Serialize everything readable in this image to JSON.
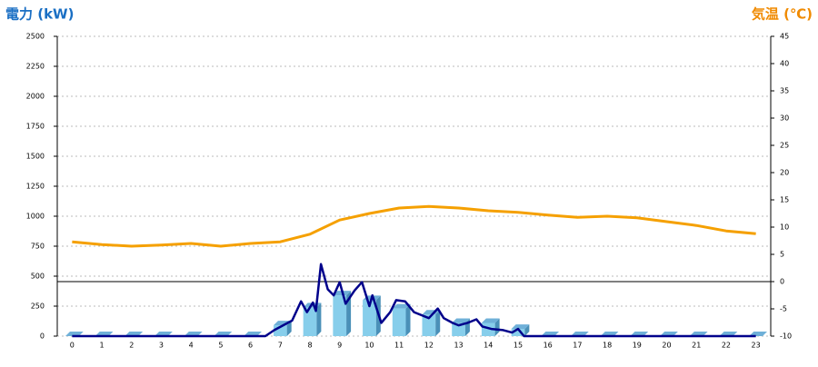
{
  "chart_data": {
    "type": "bar",
    "y_title": "電力 (kW)",
    "y2_title": "気温 (℃)",
    "categories": [
      "0",
      "1",
      "2",
      "3",
      "4",
      "5",
      "6",
      "7",
      "8",
      "9",
      "10",
      "11",
      "12",
      "13",
      "14",
      "15",
      "16",
      "17",
      "18",
      "19",
      "20",
      "21",
      "22",
      "23"
    ],
    "ylim": [
      0,
      2500
    ],
    "yticks": [
      0,
      250,
      500,
      750,
      1000,
      1250,
      1500,
      1750,
      2000,
      2250,
      2500
    ],
    "y2lim": [
      -10,
      45
    ],
    "y2ticks": [
      -10,
      -5,
      0,
      5,
      10,
      15,
      20,
      25,
      30,
      35,
      40,
      45
    ],
    "grid": true,
    "series": [
      {
        "type": "bar",
        "color": "#87ceeb",
        "values": [
          0,
          0,
          0,
          0,
          0,
          0,
          0,
          90,
          240,
          340,
          300,
          230,
          180,
          110,
          110,
          60,
          0,
          0,
          0,
          0,
          0,
          0,
          0,
          0
        ]
      },
      {
        "type": "line",
        "color": "#00008b",
        "x": [
          0,
          6.5,
          6.8,
          7.4,
          7.7,
          7.9,
          8.1,
          8.2,
          8.37,
          8.6,
          8.8,
          9.0,
          9.2,
          9.5,
          9.75,
          10.0,
          10.1,
          10.4,
          10.7,
          10.9,
          11.2,
          11.5,
          12.0,
          12.3,
          12.5,
          12.8,
          13.0,
          13.3,
          13.6,
          13.8,
          14.1,
          14.5,
          14.8,
          15.0,
          15.2,
          23
        ],
        "values": [
          0,
          0,
          50,
          130,
          290,
          200,
          280,
          210,
          600,
          390,
          340,
          450,
          270,
          380,
          450,
          250,
          340,
          110,
          200,
          300,
          290,
          200,
          150,
          230,
          150,
          110,
          90,
          110,
          140,
          80,
          60,
          50,
          30,
          60,
          0,
          0
        ]
      },
      {
        "type": "line",
        "axis": "y2",
        "color": "#f5a000",
        "values": [
          7.3,
          6.8,
          6.5,
          6.7,
          7,
          6.5,
          7,
          7.3,
          8.7,
          11.3,
          12.5,
          13.5,
          13.8,
          13.5,
          13,
          12.7,
          12.2,
          11.8,
          12,
          11.7,
          11,
          10.3,
          9.3,
          8.8
        ]
      }
    ]
  }
}
